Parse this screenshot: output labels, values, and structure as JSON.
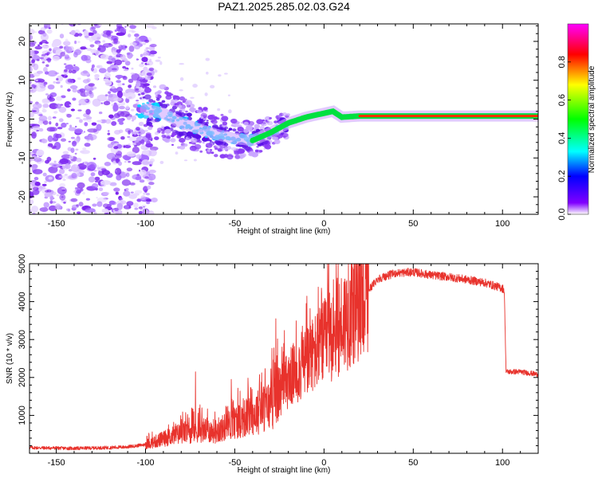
{
  "title": "PAZ1.2025.285.02.03.G24",
  "chart_data": [
    {
      "type": "heatmap",
      "title": "PAZ1.2025.285.02.03.G24",
      "xlabel": "Height of straight line (km)",
      "ylabel": "Frequency (Hz)",
      "xlim": [
        -165,
        120
      ],
      "ylim": [
        -24.5,
        24.5
      ],
      "xticks": [
        -150,
        -100,
        -50,
        0,
        50,
        100
      ],
      "xtick_labels": [
        "-150",
        "-100",
        "-50",
        "0",
        "50",
        "100"
      ],
      "yticks": [
        -20,
        -10,
        0,
        10,
        20
      ],
      "ytick_labels": [
        "-20",
        "-10",
        "0",
        "10",
        "20"
      ],
      "ridge": {
        "x": [
          -100,
          -90,
          -80,
          -70,
          -60,
          -50,
          -40,
          -30,
          -20,
          -10,
          0,
          5,
          10,
          20,
          40,
          60,
          80,
          100,
          120
        ],
        "freq": [
          2.5,
          1.5,
          -1,
          -2.5,
          -4,
          -5,
          -5.5,
          -3.5,
          -1,
          0.5,
          1.5,
          2,
          0.5,
          0.8,
          0.8,
          0.8,
          0.8,
          0.8,
          0.8
        ]
      },
      "colorbar": {
        "label": "Normalized spectral amplitude",
        "range": [
          0,
          1
        ],
        "ticks": [
          0.0,
          0.2,
          0.4,
          0.6,
          0.8
        ],
        "tick_labels": [
          "0.0",
          "0.2",
          "0.4",
          "0.6",
          "0.8"
        ],
        "colormap": [
          "#ffffff",
          "#8000ff",
          "#0000ff",
          "#00ffff",
          "#00ff00",
          "#ffff00",
          "#ff0000",
          "#ff00ff"
        ]
      }
    },
    {
      "type": "line",
      "title": "",
      "xlabel": "Height of straight line (km)",
      "ylabel": "SNR (10 * v/v)",
      "xlim": [
        -165,
        120
      ],
      "ylim": [
        0,
        5000
      ],
      "xticks": [
        -150,
        -100,
        -50,
        0,
        50,
        100
      ],
      "xtick_labels": [
        "-150",
        "-100",
        "-50",
        "0",
        "50",
        "100"
      ],
      "yticks": [
        1000,
        2000,
        3000,
        4000,
        5000
      ],
      "ytick_labels": [
        "1000",
        "2000",
        "3000",
        "4000",
        "5000"
      ],
      "color": "#e8322c",
      "series": [
        {
          "name": "SNR",
          "x": [
            -165,
            -140,
            -120,
            -110,
            -100,
            -90,
            -80,
            -70,
            -60,
            -50,
            -40,
            -30,
            -20,
            -10,
            0,
            10,
            20,
            30,
            40,
            50,
            60,
            70,
            80,
            90,
            100,
            101,
            102,
            110,
            120
          ],
          "y": [
            150,
            130,
            150,
            170,
            230,
            380,
            530,
            620,
            580,
            820,
            1020,
            1280,
            1950,
            2400,
            2900,
            3450,
            4000,
            4600,
            4750,
            4780,
            4700,
            4650,
            4580,
            4500,
            4350,
            4300,
            2150,
            2150,
            2080
          ],
          "spikes": [
            {
              "x": -72,
              "y": 2150
            },
            {
              "x": -52,
              "y": 1950
            },
            {
              "x": -27,
              "y": 3550
            },
            {
              "x": -10,
              "y": 3950
            },
            {
              "x": 5,
              "y": 4100
            },
            {
              "x": 15,
              "y": 4550
            }
          ]
        }
      ]
    }
  ]
}
